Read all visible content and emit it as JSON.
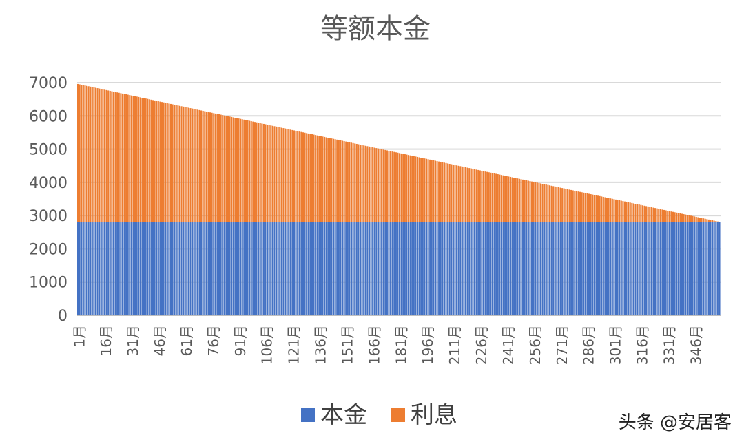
{
  "chart_data": {
    "type": "bar",
    "stacked": true,
    "title": "等额本金",
    "xlabel": "",
    "ylabel": "",
    "ylim": [
      0,
      7000
    ],
    "yticks": [
      0,
      1000,
      2000,
      3000,
      4000,
      5000,
      6000,
      7000
    ],
    "grid": true,
    "legend_position": "bottom",
    "x_tick_labels": [
      "1月",
      "16月",
      "31月",
      "46月",
      "61月",
      "76月",
      "91月",
      "106月",
      "121月",
      "136月",
      "151月",
      "166月",
      "181月",
      "196月",
      "211月",
      "226月",
      "241月",
      "256月",
      "271月",
      "286月",
      "301月",
      "316月",
      "331月",
      "346月"
    ],
    "periods": 360,
    "series": [
      {
        "name": "本金",
        "color": "#4472c4",
        "description": "constant principal each month",
        "value": 2800
      },
      {
        "name": "利息",
        "color": "#ed7d31",
        "description": "interest declining linearly from first to last month",
        "first_value": 4160,
        "last_value": 12
      }
    ]
  },
  "watermark": "头条 @安居客"
}
